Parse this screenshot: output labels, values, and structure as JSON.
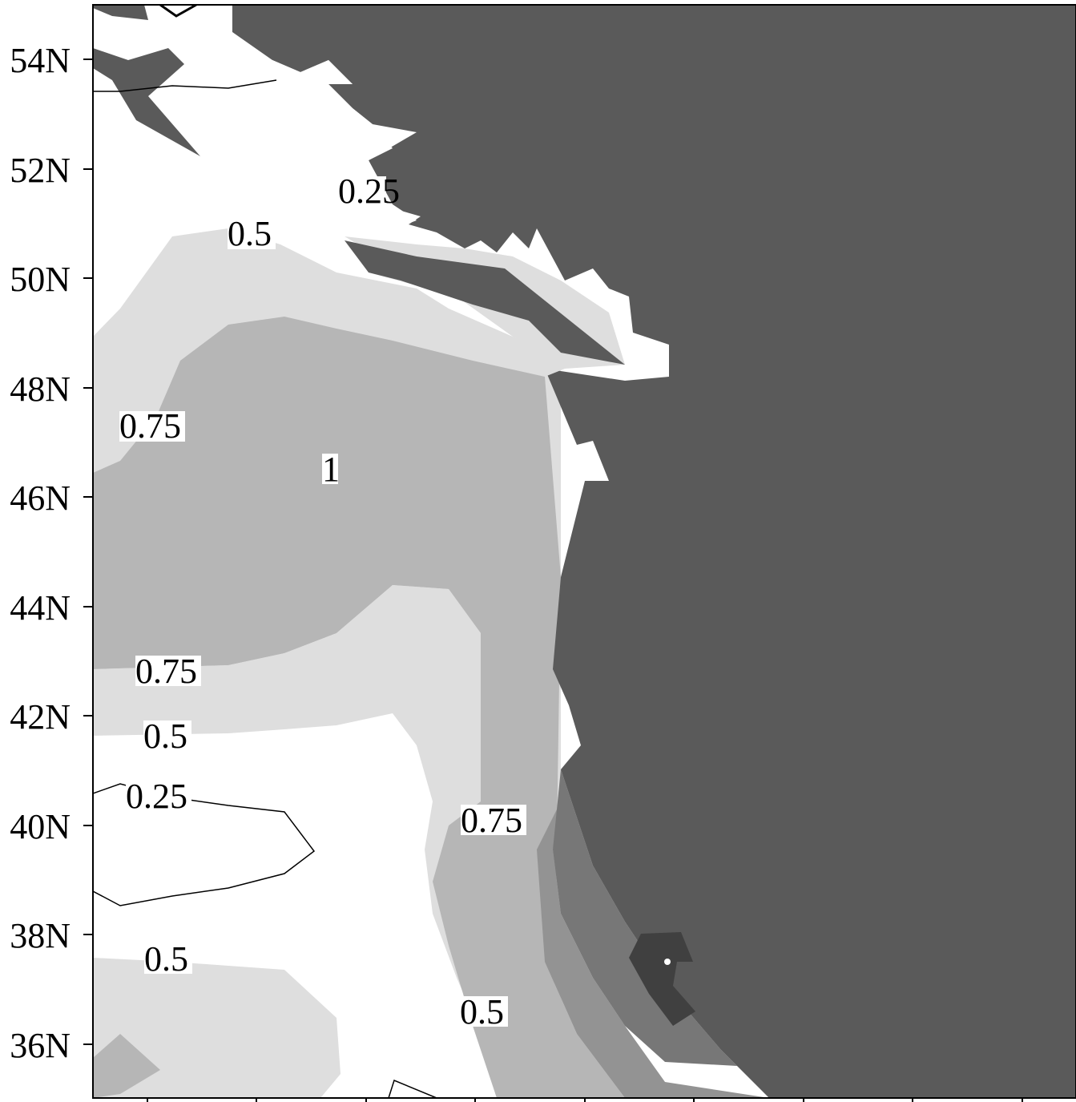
{
  "map": {
    "y_axis": {
      "ticks": [
        {
          "value": 54,
          "label": "54N"
        },
        {
          "value": 52,
          "label": "52N"
        },
        {
          "value": 50,
          "label": "50N"
        },
        {
          "value": 48,
          "label": "48N"
        },
        {
          "value": 46,
          "label": "46N"
        },
        {
          "value": 44,
          "label": "44N"
        },
        {
          "value": 42,
          "label": "42N"
        },
        {
          "value": 40,
          "label": "40N"
        },
        {
          "value": 38,
          "label": "38N"
        },
        {
          "value": 36,
          "label": "36N"
        }
      ]
    },
    "x_axis": {
      "tick_count": 9,
      "labels_visible": false
    },
    "contour_labels": [
      "0.25",
      "0.5",
      "0.75",
      "1",
      "0.75",
      "0.5",
      "0.25",
      "0.75",
      "0.5",
      "0.5"
    ],
    "colors": {
      "land": "#5a5a5a",
      "level_0": "#ffffff",
      "level_0_5": "#dedede",
      "level_0_75": "#b6b6b6",
      "level_1": "#939393",
      "level_high": "#777777",
      "level_top": "#404040",
      "border": "#000000"
    }
  }
}
